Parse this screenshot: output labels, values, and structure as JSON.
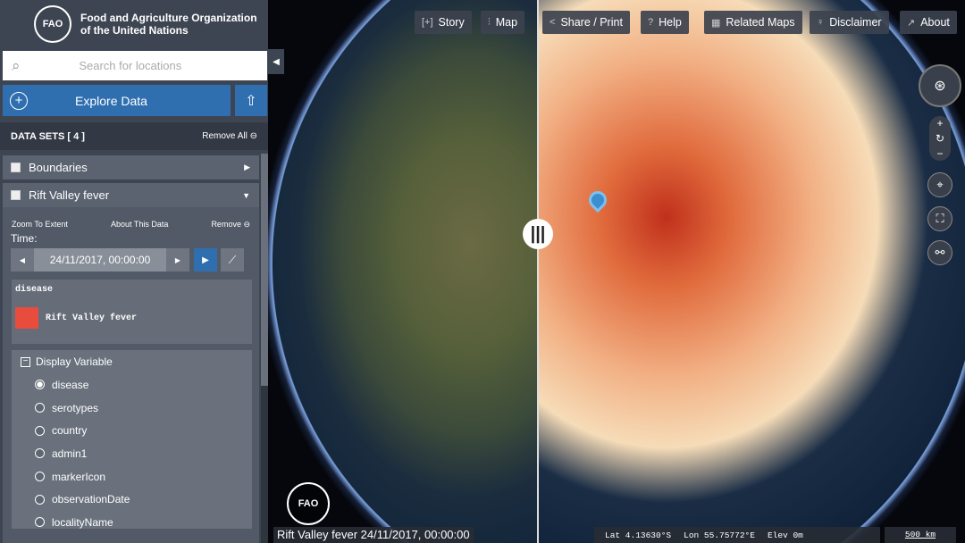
{
  "header": {
    "logo_text": "FAO",
    "org_line1": "Food and Agriculture Organization",
    "org_line2": "of the United Nations"
  },
  "search": {
    "placeholder": "Search for locations"
  },
  "explore": {
    "label": "Explore Data"
  },
  "datasets": {
    "title": "DATA SETS  [ 4 ]",
    "remove_all": "Remove All",
    "items": [
      {
        "label": "Boundaries"
      },
      {
        "label": "Rift Valley fever"
      }
    ]
  },
  "panel": {
    "zoom": "Zoom To Extent",
    "about": "About This Data",
    "remove": "Remove",
    "time_label": "Time:",
    "time_value": "24/11/2017, 00:00:00",
    "legend_title": "disease",
    "legend_item": "Rift Valley fever",
    "legend_color": "#e74c3c",
    "display_variable": "Display Variable",
    "variables": [
      "disease",
      "serotypes",
      "country",
      "admin1",
      "markerIcon",
      "observationDate",
      "localityName"
    ],
    "selected": "disease"
  },
  "toolbar": {
    "story": "Story",
    "map": "Map",
    "share": "Share / Print",
    "help": "Help",
    "related": "Related Maps",
    "disclaimer": "Disclaimer",
    "about": "About"
  },
  "status": {
    "caption": "Rift Valley fever 24/11/2017, 00:00:00",
    "lat": "Lat  4.13630°S",
    "lon": "Lon  55.75772°E",
    "elev": "Elev  0m",
    "scale": "500 km"
  }
}
